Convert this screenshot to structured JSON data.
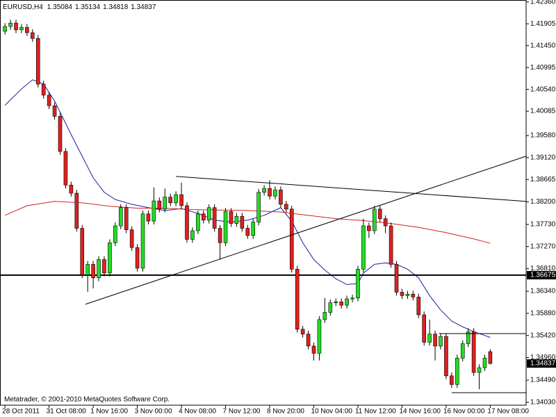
{
  "chart_data": {
    "type": "candlestick",
    "title": "EURUSD,H4",
    "footer": "Metatrader, © 2001-2010 MetaQuotes Software Corp.",
    "x": [
      "28 Oct 2011",
      null,
      null,
      null,
      null,
      null,
      null,
      null,
      "31 Oct 08:00",
      null,
      null,
      null,
      null,
      null,
      null,
      null,
      "1 Nov 16:00",
      null,
      null,
      null,
      null,
      null,
      null,
      null,
      "3 Nov 00:00",
      null,
      null,
      null,
      null,
      null,
      null,
      null,
      "4 Nov 08:00",
      null,
      null,
      null,
      null,
      null,
      null,
      null,
      "7 Nov 12:00",
      null,
      null,
      null,
      null,
      null,
      null,
      null,
      "8 Nov 20:00",
      null,
      null,
      null,
      null,
      null,
      null,
      null,
      "10 Nov 04:00",
      null,
      null,
      null,
      null,
      null,
      null,
      null,
      "11 Nov 12:00",
      null,
      null,
      null,
      null,
      null,
      null,
      null,
      "14 Nov 16:00",
      null,
      null,
      null,
      null,
      null,
      null,
      null,
      "16 Nov 00:00",
      null,
      null,
      null,
      null,
      null,
      null,
      null,
      "17 Nov 08:00"
    ],
    "open": [
      1.4175,
      1.4185,
      1.4192,
      1.4178,
      1.4183,
      1.4172,
      1.416,
      1.4065,
      1.4042,
      1.402,
      1.3998,
      1.3925,
      1.3855,
      1.3838,
      1.3765,
      1.3668,
      1.369,
      1.3662,
      1.37,
      1.3672,
      1.3735,
      1.377,
      1.3808,
      1.3762,
      1.3725,
      1.3682,
      1.3795,
      1.378,
      1.3822,
      1.3805,
      1.383,
      1.3818,
      1.3835,
      1.3812,
      1.3742,
      1.376,
      1.3795,
      1.3782,
      1.3808,
      1.3765,
      1.3735,
      1.38,
      1.3775,
      1.379,
      1.3765,
      1.375,
      1.3778,
      1.384,
      1.3848,
      1.3832,
      1.3845,
      1.3815,
      1.3805,
      1.368,
      1.3555,
      1.3545,
      1.352,
      1.3505,
      1.3575,
      1.359,
      1.361,
      1.3612,
      1.3605,
      1.3618,
      1.362,
      1.368,
      1.377,
      1.376,
      1.3805,
      1.3785,
      1.377,
      1.369,
      1.3632,
      1.3625,
      1.3628,
      1.3622,
      1.3585,
      1.3528,
      1.3545,
      1.352,
      1.354,
      1.3458,
      1.344,
      1.3495,
      1.3525,
      1.355,
      1.3465,
      1.3475,
      1.35084
    ],
    "high": [
      1.4192,
      1.4199,
      1.4199,
      1.419,
      1.419,
      1.4179,
      1.4167,
      1.4072,
      1.4049,
      1.4027,
      1.4005,
      1.3932,
      1.3862,
      1.3845,
      1.3772,
      1.3697,
      1.3697,
      1.3707,
      1.3707,
      1.3742,
      1.3777,
      1.3815,
      1.3815,
      1.3769,
      1.3732,
      1.3802,
      1.3802,
      1.385,
      1.3829,
      1.3848,
      1.3837,
      1.3842,
      1.386,
      1.3819,
      1.3767,
      1.3802,
      1.3802,
      1.3815,
      1.3815,
      1.3772,
      1.3807,
      1.3807,
      1.3797,
      1.3797,
      1.3772,
      1.3785,
      1.3847,
      1.3855,
      1.3865,
      1.3852,
      1.3852,
      1.3822,
      1.3812,
      1.3687,
      1.3562,
      1.3552,
      1.3527,
      1.3582,
      1.362,
      1.3617,
      1.3619,
      1.3619,
      1.3625,
      1.3627,
      1.3687,
      1.3785,
      1.3777,
      1.3812,
      1.3812,
      1.3792,
      1.3777,
      1.3697,
      1.3639,
      1.3635,
      1.3635,
      1.3629,
      1.3592,
      1.3575,
      1.3552,
      1.3547,
      1.3547,
      1.3465,
      1.3502,
      1.3532,
      1.3557,
      1.3557,
      1.3482,
      1.3502,
      1.35134
    ],
    "low": [
      1.4168,
      1.4178,
      1.4171,
      1.4171,
      1.4165,
      1.4153,
      1.4058,
      1.4035,
      1.4013,
      1.3991,
      1.3918,
      1.3848,
      1.3831,
      1.3758,
      1.3661,
      1.3633,
      1.364,
      1.3655,
      1.3665,
      1.3665,
      1.3728,
      1.3763,
      1.3755,
      1.3718,
      1.3675,
      1.3675,
      1.3773,
      1.3773,
      1.3798,
      1.3798,
      1.3811,
      1.3811,
      1.3805,
      1.3735,
      1.3735,
      1.3753,
      1.3775,
      1.3775,
      1.3758,
      1.37,
      1.3728,
      1.3768,
      1.3768,
      1.3758,
      1.3743,
      1.3743,
      1.3771,
      1.3833,
      1.3825,
      1.3825,
      1.3808,
      1.3798,
      1.3673,
      1.3548,
      1.3538,
      1.3513,
      1.349,
      1.349,
      1.3568,
      1.3583,
      1.3603,
      1.3598,
      1.3598,
      1.3611,
      1.3613,
      1.3673,
      1.3745,
      1.3753,
      1.3778,
      1.3755,
      1.3683,
      1.3625,
      1.3618,
      1.3618,
      1.3615,
      1.3578,
      1.3521,
      1.3521,
      1.349,
      1.3513,
      1.3451,
      1.3433,
      1.3433,
      1.3488,
      1.3518,
      1.3458,
      1.343,
      1.3468,
      1.34818
    ],
    "close": [
      1.4185,
      1.4192,
      1.4178,
      1.4183,
      1.4172,
      1.416,
      1.4065,
      1.4042,
      1.402,
      1.3998,
      1.3925,
      1.3855,
      1.3838,
      1.3765,
      1.3668,
      1.369,
      1.3662,
      1.37,
      1.3672,
      1.3735,
      1.377,
      1.3808,
      1.3762,
      1.3725,
      1.3682,
      1.3795,
      1.378,
      1.3822,
      1.3805,
      1.383,
      1.3818,
      1.3835,
      1.3812,
      1.3742,
      1.376,
      1.3795,
      1.3782,
      1.3808,
      1.3765,
      1.3735,
      1.38,
      1.3775,
      1.379,
      1.3765,
      1.375,
      1.3778,
      1.384,
      1.3848,
      1.3832,
      1.3845,
      1.3815,
      1.3805,
      1.368,
      1.3555,
      1.3545,
      1.352,
      1.3505,
      1.3575,
      1.359,
      1.361,
      1.3612,
      1.3605,
      1.3618,
      1.362,
      1.368,
      1.377,
      1.376,
      1.3805,
      1.3785,
      1.377,
      1.369,
      1.3632,
      1.3625,
      1.3628,
      1.3622,
      1.3585,
      1.3528,
      1.3545,
      1.352,
      1.354,
      1.3458,
      1.344,
      1.3495,
      1.3525,
      1.355,
      1.3465,
      1.3475,
      1.3495,
      1.34837
    ],
    "up_color": "#22dd22",
    "down_color": "#e02020",
    "wick_color": "#000000",
    "xlim": [
      -0.9,
      94.5
    ],
    "ylim": [
      1.3397,
      1.424
    ],
    "yticks": [
      {
        "value": 1.4236,
        "label": "1.42360"
      },
      1.41905,
      {
        "value": 1.4145,
        "label": "1.41450"
      },
      1.40995,
      {
        "value": 1.4054,
        "label": "1.40540"
      },
      1.40085,
      {
        "value": 1.3958,
        "label": "1.39580"
      },
      {
        "value": 1.3912,
        "label": "1.39120"
      },
      1.38665,
      {
        "value": 1.382,
        "label": "1.38200"
      },
      {
        "value": 1.3773,
        "label": "1.37730"
      },
      {
        "value": 1.3727,
        "label": "1.37270"
      },
      {
        "value": 1.3681,
        "label": "1.36810"
      },
      {
        "value": 1.3634,
        "label": "1.36340"
      },
      {
        "value": 1.3588,
        "label": "1.35880"
      },
      {
        "value": 1.3542,
        "label": "1.35420"
      },
      {
        "value": 1.3496,
        "label": "1.34960"
      },
      {
        "value": 1.3449,
        "label": "1.34490"
      },
      {
        "value": 1.3403,
        "label": "1.34030"
      }
    ],
    "level": 1.36675,
    "indicators": [
      {
        "color": "#1c1c9c",
        "x": [
          0,
          3,
          5,
          7,
          9,
          12,
          14,
          16,
          18,
          20,
          23,
          26,
          29,
          32,
          35,
          38,
          41,
          44,
          47,
          50,
          52,
          54,
          56,
          58,
          60,
          62,
          64,
          65,
          67,
          69,
          71,
          73,
          75,
          77,
          79,
          81,
          83,
          85,
          88
        ],
        "values": [
          1.4021,
          1.4055,
          1.4074,
          1.4065,
          1.403,
          1.396,
          1.3915,
          1.387,
          1.384,
          1.3825,
          1.3815,
          1.3808,
          1.3802,
          1.3806,
          1.3796,
          1.3782,
          1.3778,
          1.3782,
          1.3792,
          1.3808,
          1.378,
          1.3735,
          1.37,
          1.3678,
          1.366,
          1.3648,
          1.365,
          1.3672,
          1.369,
          1.3693,
          1.369,
          1.368,
          1.3662,
          1.3625,
          1.3595,
          1.3572,
          1.356,
          1.355,
          1.3538
        ]
      },
      {
        "color": "#d02020",
        "x": [
          0,
          4,
          9,
          14,
          19,
          24,
          29,
          34,
          39,
          44,
          50,
          55,
          60,
          65,
          70,
          75,
          80,
          85,
          88
        ],
        "values": [
          1.3792,
          1.3812,
          1.3821,
          1.3818,
          1.3811,
          1.3807,
          1.3807,
          1.3804,
          1.3803,
          1.3802,
          1.3799,
          1.3792,
          1.3785,
          1.3781,
          1.3775,
          1.3767,
          1.3756,
          1.3743,
          1.3734
        ]
      }
    ],
    "trendlines": [
      {
        "color": "#000000",
        "x": [
          31,
          94.5
        ],
        "values": [
          1.3873,
          1.3821
        ]
      },
      {
        "color": "#000000",
        "x": [
          14.6,
          94.5
        ],
        "values": [
          1.3607,
          1.3915
        ]
      },
      {
        "color": "#000000",
        "x": [
          78.7,
          94.5
        ],
        "values": [
          1.3546,
          1.3546
        ]
      },
      {
        "color": "#000000",
        "x": [
          81,
          94.5
        ],
        "values": [
          1.3423,
          1.3423
        ]
      }
    ]
  }
}
